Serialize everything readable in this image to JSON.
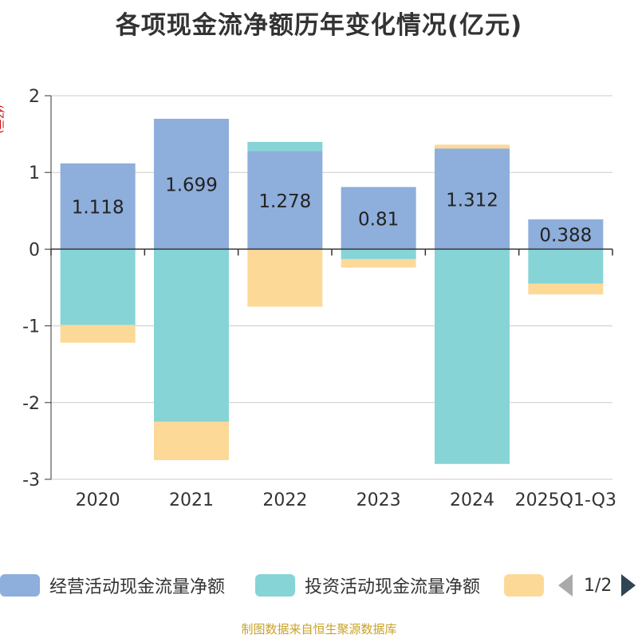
{
  "title": "各项现金流净额历年变化情况(亿元)",
  "unit_label": "(亿元)",
  "source": "制图数据来自恒生聚源数据库",
  "pager": {
    "text": "1/2"
  },
  "chart_data": {
    "type": "bar",
    "stacked": true,
    "title": "各项现金流净额历年变化情况(亿元)",
    "ylabel": "(亿元)",
    "ylim": [
      -3,
      2
    ],
    "yticks": [
      2,
      1,
      0,
      -1,
      -2,
      -3
    ],
    "ytick_labels": [
      "2",
      "1",
      "0",
      "-1",
      "-2",
      "-3"
    ],
    "categories": [
      "2020",
      "2021",
      "2022",
      "2023",
      "2024",
      "2025Q1-Q3"
    ],
    "series": [
      {
        "name": "经营活动现金流量净额",
        "color": "#8eaedb",
        "values": [
          1.118,
          1.699,
          1.278,
          0.81,
          1.312,
          0.388
        ],
        "labels": [
          "1.118",
          "1.699",
          "1.278",
          "0.81",
          "1.312",
          "0.388"
        ]
      },
      {
        "name": "投资活动现金流量净额",
        "color": "#86d4d6",
        "values": [
          -0.99,
          -2.25,
          0.12,
          -0.13,
          -2.8,
          -0.45
        ]
      },
      {
        "name": "",
        "color": "#fdd998",
        "values": [
          -0.23,
          -0.5,
          -0.75,
          -0.11,
          0.05,
          -0.14
        ]
      }
    ]
  }
}
